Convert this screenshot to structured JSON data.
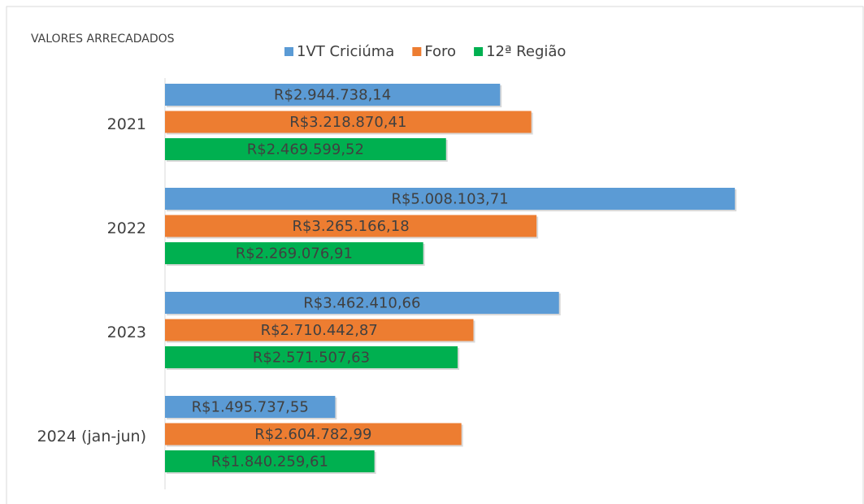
{
  "chart_data": {
    "type": "hbar",
    "title": "VALORES ARRECADADOS",
    "categories": [
      "2021",
      "2022",
      "2023",
      "2024 (jan-jun)"
    ],
    "series": [
      {
        "name": "1VT Criciúma",
        "color": "#5b9bd5",
        "values": [
          2944738.14,
          5008103.71,
          3462410.66,
          1495737.55
        ],
        "value_labels": [
          "R$2.944.738,14",
          "R$5.008.103,71",
          "R$3.462.410,66",
          "R$1.495.737,55"
        ]
      },
      {
        "name": "Foro",
        "color": "#ed7d31",
        "values": [
          3218870.41,
          3265166.18,
          2710442.87,
          2604782.99
        ],
        "value_labels": [
          "R$3.218.870,41",
          "R$3.265.166,18",
          "R$2.710.442,87",
          "R$2.604.782,99"
        ]
      },
      {
        "name": "12ª Região",
        "color": "#00b050",
        "values": [
          2469599.52,
          2269076.91,
          2571507.63,
          1840259.61
        ],
        "value_labels": [
          "R$2.469.599,52",
          "R$2.269.076,91",
          "R$2.571.507,63",
          "R$1.840.259,61"
        ]
      }
    ],
    "xlim": [
      0,
      6000000
    ]
  }
}
